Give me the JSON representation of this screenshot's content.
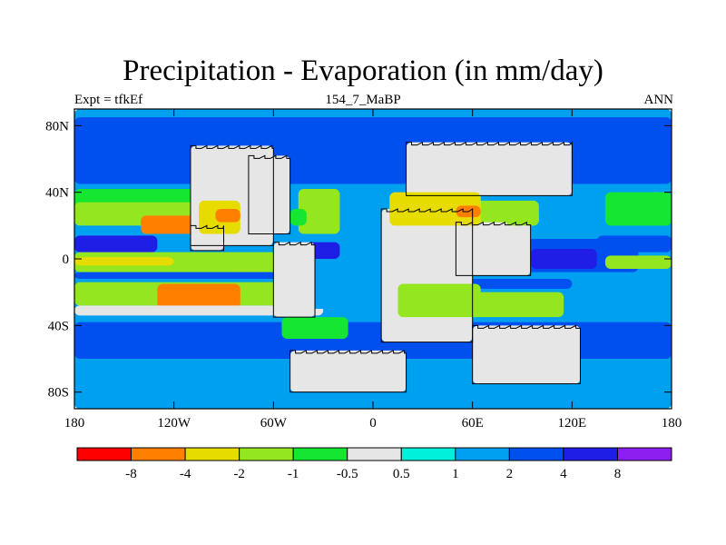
{
  "header": {
    "title": "Precipitation - Evaporation (in mm/day)",
    "left": "Expt = tfkEf",
    "center": "154_7_MaBP",
    "right": "ANN"
  },
  "axes": {
    "lat_ticks": [
      "80N",
      "40N",
      "0",
      "40S",
      "80S"
    ],
    "lon_ticks": [
      "180",
      "120W",
      "60W",
      "0",
      "60E",
      "120E",
      "180"
    ]
  },
  "colorbar": {
    "colors": [
      "#ff0000",
      "#ff8000",
      "#e6dc00",
      "#94e61e",
      "#14e632",
      "#e6e6e6",
      "#00f0dc",
      "#00a0f0",
      "#0050f0",
      "#1e1ee6",
      "#8c1ef0"
    ],
    "labels": [
      "-8",
      "-4",
      "-2",
      "-1",
      "-0.5",
      "0.5",
      "1",
      "2",
      "4",
      "8"
    ]
  },
  "chart_data": {
    "type": "heatmap",
    "variable": "Precipitation - Evaporation",
    "units": "mm/day",
    "levels": [
      -8,
      -4,
      -2,
      -1,
      -0.5,
      0.5,
      1,
      2,
      4,
      8
    ],
    "xlim": [
      -180,
      180
    ],
    "ylim": [
      -90,
      90
    ],
    "regions": [
      {
        "lon": [
          -180,
          180
        ],
        "lat": [
          -90,
          90
        ],
        "value": 1.5
      },
      {
        "lon": [
          -180,
          180
        ],
        "lat": [
          45,
          85
        ],
        "value": 2.5
      },
      {
        "lon": [
          -180,
          -70
        ],
        "lat": [
          30,
          42
        ],
        "value": -0.8
      },
      {
        "lon": [
          -180,
          -90
        ],
        "lat": [
          20,
          34
        ],
        "value": -1.5
      },
      {
        "lon": [
          -140,
          -105
        ],
        "lat": [
          15,
          26
        ],
        "value": -5
      },
      {
        "lon": [
          -180,
          -130
        ],
        "lat": [
          4,
          14
        ],
        "value": 5
      },
      {
        "lon": [
          -180,
          -50
        ],
        "lat": [
          -8,
          4
        ],
        "value": -1.5
      },
      {
        "lon": [
          -180,
          -120
        ],
        "lat": [
          -4,
          1
        ],
        "value": -3
      },
      {
        "lon": [
          -180,
          -40
        ],
        "lat": [
          -12,
          -8
        ],
        "value": 2
      },
      {
        "lon": [
          -180,
          -30
        ],
        "lat": [
          -28,
          -14
        ],
        "value": -1.5
      },
      {
        "lon": [
          -130,
          -80
        ],
        "lat": [
          -30,
          -15
        ],
        "value": -5
      },
      {
        "lon": [
          -180,
          -30
        ],
        "lat": [
          -34,
          -28
        ],
        "value": -0.2
      },
      {
        "lon": [
          -180,
          180
        ],
        "lat": [
          -60,
          -38
        ],
        "value": 2.5
      },
      {
        "lon": [
          -180,
          180
        ],
        "lat": [
          -80,
          -68
        ],
        "value": 1.0
      },
      {
        "lon": [
          -45,
          5
        ],
        "lat": [
          -30,
          45
        ],
        "value": 1.5
      },
      {
        "lon": [
          -55,
          -15
        ],
        "lat": [
          -48,
          -35
        ],
        "value": -1.0
      },
      {
        "lon": [
          -50,
          -20
        ],
        "lat": [
          0,
          10
        ],
        "value": 4
      },
      {
        "lon": [
          60,
          160
        ],
        "lat": [
          -8,
          12
        ],
        "value": 3
      },
      {
        "lon": [
          95,
          135
        ],
        "lat": [
          -6,
          6
        ],
        "value": 5
      },
      {
        "lon": [
          135,
          180
        ],
        "lat": [
          4,
          14
        ],
        "value": 2.5
      },
      {
        "lon": [
          140,
          180
        ],
        "lat": [
          -6,
          2
        ],
        "value": -2
      },
      {
        "lon": [
          40,
          120
        ],
        "lat": [
          -18,
          -12
        ],
        "value": 2
      },
      {
        "lon": [
          30,
          115
        ],
        "lat": [
          -35,
          -20
        ],
        "value": -1.5
      },
      {
        "lon": [
          140,
          180
        ],
        "lat": [
          20,
          40
        ],
        "value": -1
      },
      {
        "lon": [
          -120,
          -60
        ],
        "lat": [
          50,
          70
        ],
        "value": 3
      },
      {
        "lon": [
          20,
          60
        ],
        "lat": [
          30,
          42
        ],
        "value": -2
      },
      {
        "lon": [
          10,
          60
        ],
        "lat": [
          15,
          30
        ],
        "value": -2
      },
      {
        "lon": [
          60,
          100
        ],
        "lat": [
          20,
          35
        ],
        "value": -1.5
      }
    ],
    "land": [
      {
        "name": "north-america",
        "lon": [
          -110,
          -60
        ],
        "lat": [
          8,
          68
        ],
        "value": 0
      },
      {
        "name": "north-america-east",
        "lon": [
          -75,
          -50
        ],
        "lat": [
          15,
          62
        ],
        "value": 0
      },
      {
        "name": "north-america-west-coast",
        "lon": [
          -110,
          -90
        ],
        "lat": [
          5,
          20
        ],
        "value": 0
      },
      {
        "name": "south-america-interior",
        "lon": [
          -60,
          -35
        ],
        "lat": [
          -35,
          10
        ],
        "value": 0
      },
      {
        "name": "eurasia",
        "lon": [
          20,
          120
        ],
        "lat": [
          38,
          70
        ],
        "value": 0
      },
      {
        "name": "africa",
        "lon": [
          5,
          60
        ],
        "lat": [
          -50,
          30
        ],
        "value": 0
      },
      {
        "name": "arabia-india",
        "lon": [
          50,
          95
        ],
        "lat": [
          -10,
          22
        ],
        "value": 0
      },
      {
        "name": "australia-antarctic",
        "lon": [
          60,
          125
        ],
        "lat": [
          -75,
          -40
        ],
        "value": 0
      },
      {
        "name": "antarctica-west",
        "lon": [
          -50,
          20
        ],
        "lat": [
          -80,
          -55
        ],
        "value": 0
      }
    ],
    "desert": [
      {
        "lon": [
          -105,
          -80
        ],
        "lat": [
          15,
          35
        ],
        "value": -2.5
      },
      {
        "lon": [
          -95,
          -80
        ],
        "lat": [
          22,
          30
        ],
        "value": -4.5
      },
      {
        "lon": [
          -45,
          -20
        ],
        "lat": [
          15,
          42
        ],
        "value": -1.5
      },
      {
        "lon": [
          -50,
          -40
        ],
        "lat": [
          20,
          30
        ],
        "value": -0.8
      },
      {
        "lon": [
          10,
          65
        ],
        "lat": [
          20,
          40
        ],
        "value": -2.5
      },
      {
        "lon": [
          50,
          65
        ],
        "lat": [
          25,
          32
        ],
        "value": -4.5
      },
      {
        "lon": [
          15,
          65
        ],
        "lat": [
          -35,
          -15
        ],
        "value": -1.5
      },
      {
        "lon": [
          80,
          100
        ],
        "lat": [
          20,
          30
        ],
        "value": -1.5
      }
    ]
  }
}
